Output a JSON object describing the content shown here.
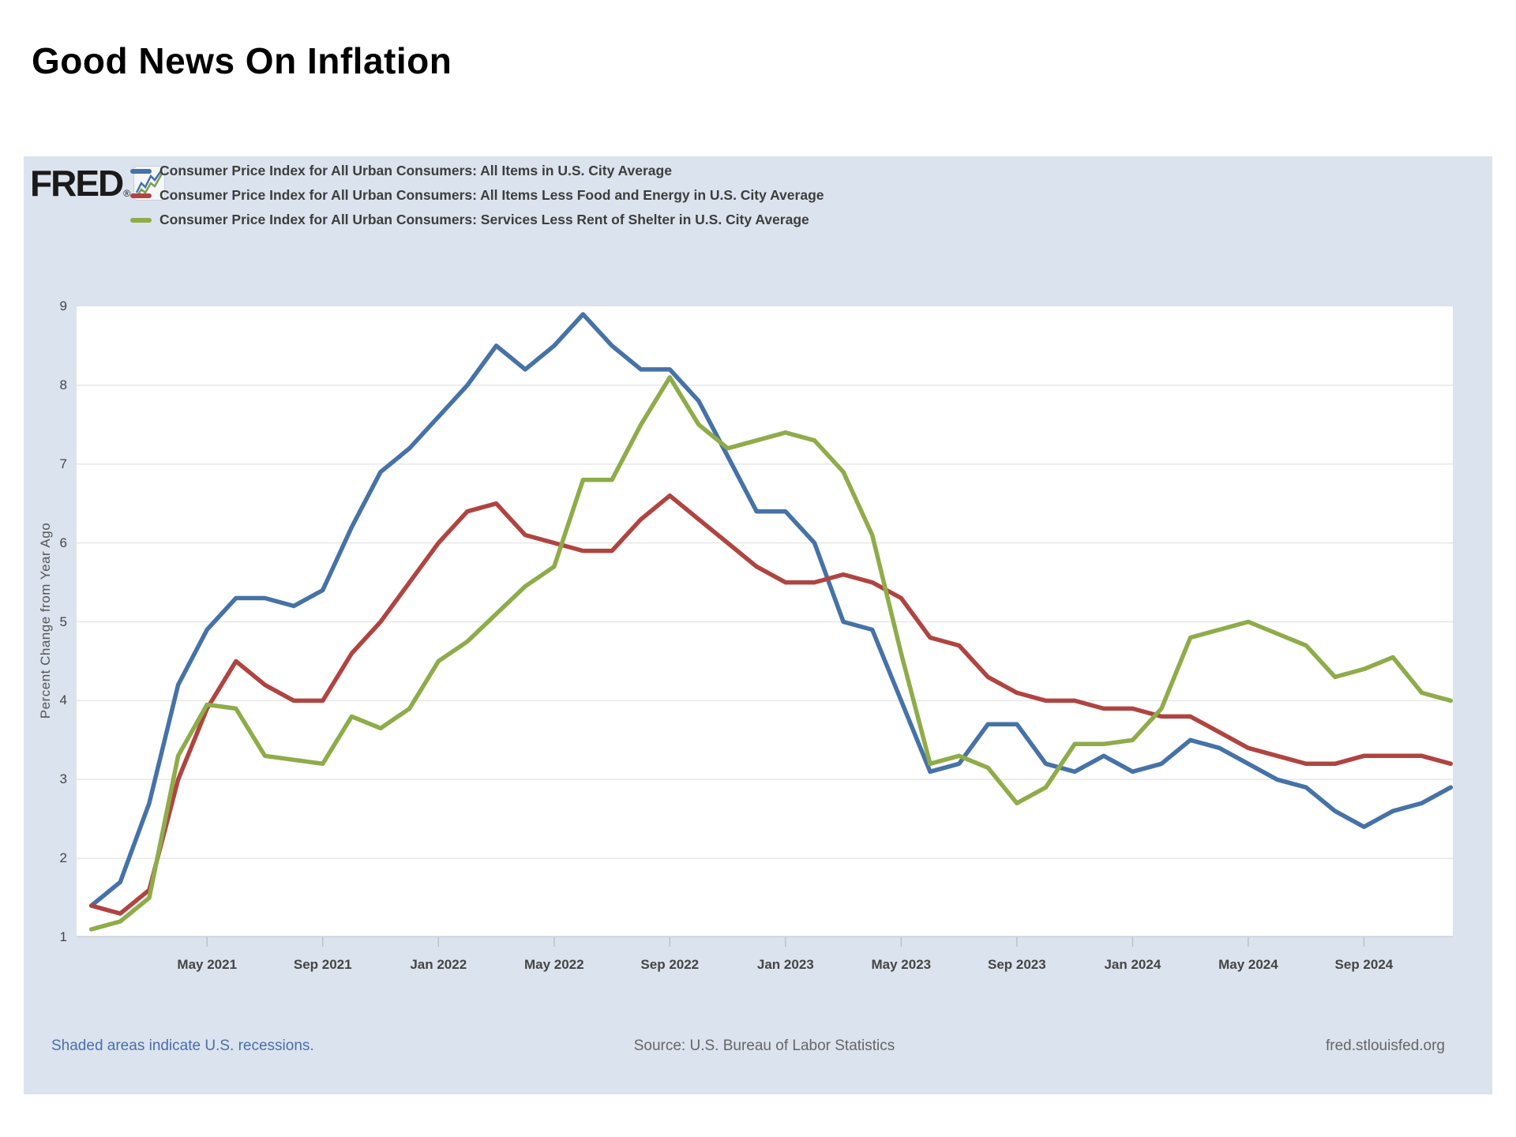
{
  "page": {
    "title": "Good News On Inflation"
  },
  "logo": {
    "text": "FRED",
    "reg": "®"
  },
  "footer": {
    "left": "Shaded areas indicate U.S. recessions.",
    "center": "Source: U.S. Bureau of Labor Statistics",
    "right": "fred.stlouisfed.org"
  },
  "chart_data": {
    "type": "line",
    "title": "",
    "xlabel": "",
    "ylabel": "Percent Change from Year Ago",
    "ylim": [
      1,
      9
    ],
    "yticks": [
      1,
      2,
      3,
      4,
      5,
      6,
      7,
      8,
      9
    ],
    "grid": "horizontal",
    "legend_position": "top-left",
    "background_color": "#dbe3ee",
    "plot_background_color": "#ffffff",
    "categories": [
      "Jan 2021",
      "Feb 2021",
      "Mar 2021",
      "Apr 2021",
      "May 2021",
      "Jun 2021",
      "Jul 2021",
      "Aug 2021",
      "Sep 2021",
      "Oct 2021",
      "Nov 2021",
      "Dec 2021",
      "Jan 2022",
      "Feb 2022",
      "Mar 2022",
      "Apr 2022",
      "May 2022",
      "Jun 2022",
      "Jul 2022",
      "Aug 2022",
      "Sep 2022",
      "Oct 2022",
      "Nov 2022",
      "Dec 2022",
      "Jan 2023",
      "Feb 2023",
      "Mar 2023",
      "Apr 2023",
      "May 2023",
      "Jun 2023",
      "Jul 2023",
      "Aug 2023",
      "Sep 2023",
      "Oct 2023",
      "Nov 2023",
      "Dec 2023",
      "Jan 2024",
      "Feb 2024",
      "Mar 2024",
      "Apr 2024",
      "May 2024",
      "Jun 2024",
      "Jul 2024",
      "Aug 2024",
      "Sep 2024",
      "Oct 2024",
      "Nov 2024",
      "Dec 2024"
    ],
    "x_ticks": [
      {
        "month_index": 4,
        "label": "May 2021"
      },
      {
        "month_index": 8,
        "label": "Sep 2021"
      },
      {
        "month_index": 12,
        "label": "Jan 2022"
      },
      {
        "month_index": 16,
        "label": "May 2022"
      },
      {
        "month_index": 20,
        "label": "Sep 2022"
      },
      {
        "month_index": 24,
        "label": "Jan 2023"
      },
      {
        "month_index": 28,
        "label": "May 2023"
      },
      {
        "month_index": 32,
        "label": "Sep 2023"
      },
      {
        "month_index": 36,
        "label": "Jan 2024"
      },
      {
        "month_index": 40,
        "label": "May 2024"
      },
      {
        "month_index": 44,
        "label": "Sep 2024"
      }
    ],
    "series": [
      {
        "name": "Consumer Price Index for All Urban Consumers: All Items in U.S. City Average",
        "color": "#4572a7",
        "values": [
          1.4,
          1.7,
          2.7,
          4.2,
          4.9,
          5.3,
          5.3,
          5.2,
          5.4,
          6.2,
          6.9,
          7.2,
          7.6,
          8.0,
          8.5,
          8.2,
          8.5,
          8.9,
          8.5,
          8.2,
          8.2,
          7.8,
          7.1,
          6.4,
          6.4,
          6.0,
          5.0,
          4.9,
          4.0,
          3.1,
          3.2,
          3.7,
          3.7,
          3.2,
          3.1,
          3.3,
          3.1,
          3.2,
          3.5,
          3.4,
          3.2,
          3.0,
          2.9,
          2.6,
          2.4,
          2.6,
          2.7,
          2.9
        ]
      },
      {
        "name": "Consumer Price Index for All Urban Consumers: All Items Less Food and Energy in U.S. City Average",
        "color": "#b04440",
        "values": [
          1.4,
          1.3,
          1.6,
          3.0,
          3.9,
          4.5,
          4.2,
          4.0,
          4.0,
          4.6,
          5.0,
          5.5,
          6.0,
          6.4,
          6.5,
          6.1,
          6.0,
          5.9,
          5.9,
          6.3,
          6.6,
          6.3,
          6.0,
          5.7,
          5.5,
          5.5,
          5.6,
          5.5,
          5.3,
          4.8,
          4.7,
          4.3,
          4.1,
          4.0,
          4.0,
          3.9,
          3.9,
          3.8,
          3.8,
          3.6,
          3.4,
          3.3,
          3.2,
          3.2,
          3.3,
          3.3,
          3.3,
          3.2
        ]
      },
      {
        "name": "Consumer Price Index for All Urban Consumers: Services Less Rent of Shelter in U.S. City Average",
        "color": "#8eac49",
        "values": [
          1.1,
          1.2,
          1.5,
          3.3,
          3.95,
          3.9,
          3.3,
          3.25,
          3.2,
          3.8,
          3.65,
          3.9,
          4.5,
          4.75,
          5.1,
          5.45,
          5.7,
          6.8,
          6.8,
          7.5,
          8.1,
          7.5,
          7.2,
          7.3,
          7.4,
          7.3,
          6.9,
          6.1,
          4.6,
          3.2,
          3.3,
          3.15,
          2.7,
          2.9,
          3.45,
          3.45,
          3.5,
          3.9,
          4.8,
          4.9,
          5.0,
          4.85,
          4.7,
          4.3,
          4.4,
          4.55,
          4.1,
          4.0
        ]
      }
    ]
  }
}
